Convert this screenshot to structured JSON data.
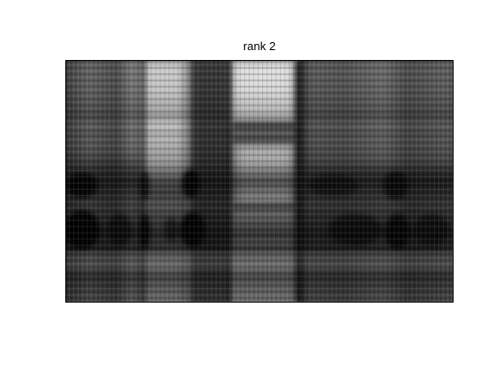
{
  "figure": {
    "title": "rank 2"
  },
  "image": {
    "colormap": "gray",
    "description_type": "low-rank grayscale matrix approximation",
    "colors": {
      "white": "#ffffff",
      "black": "#000000"
    }
  }
}
